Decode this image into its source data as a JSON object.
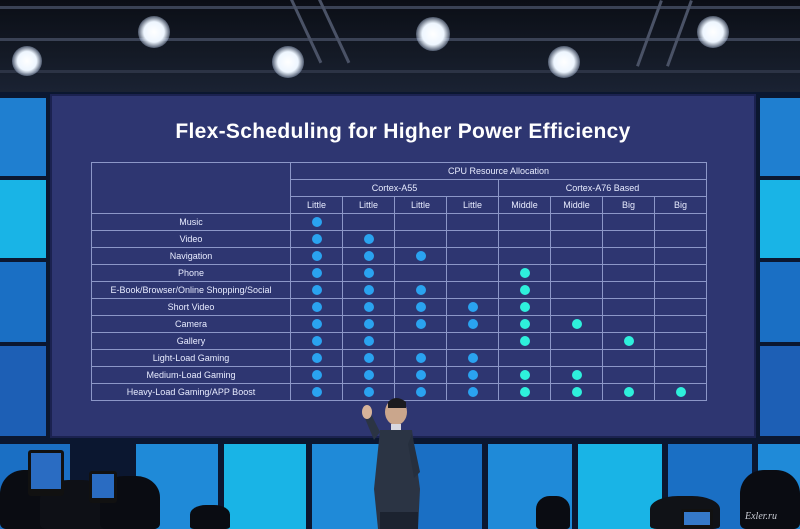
{
  "slide": {
    "title": "Flex-Scheduling for Higher Power Efficiency",
    "resource_header": "CPU Resource Allocation",
    "groups": [
      {
        "label": "Cortex-A55",
        "span": 4
      },
      {
        "label": "Cortex-A76 Based",
        "span": 4
      }
    ],
    "cores": [
      "Little",
      "Little",
      "Little",
      "Little",
      "Middle",
      "Middle",
      "Big",
      "Big"
    ],
    "rows": [
      {
        "label": "Music",
        "dots": [
          "blue",
          "",
          "",
          "",
          "",
          "",
          "",
          ""
        ]
      },
      {
        "label": "Video",
        "dots": [
          "blue",
          "blue",
          "",
          "",
          "",
          "",
          "",
          ""
        ]
      },
      {
        "label": "Navigation",
        "dots": [
          "blue",
          "blue",
          "blue",
          "",
          "",
          "",
          "",
          ""
        ]
      },
      {
        "label": "Phone",
        "dots": [
          "blue",
          "blue",
          "",
          "",
          "cyan",
          "",
          "",
          ""
        ]
      },
      {
        "label": "E-Book/Browser/Online Shopping/Social",
        "dots": [
          "blue",
          "blue",
          "blue",
          "",
          "cyan",
          "",
          "",
          ""
        ]
      },
      {
        "label": "Short Video",
        "dots": [
          "blue",
          "blue",
          "blue",
          "blue",
          "cyan",
          "",
          "",
          ""
        ]
      },
      {
        "label": "Camera",
        "dots": [
          "blue",
          "blue",
          "blue",
          "blue",
          "cyan",
          "cyan",
          "",
          ""
        ]
      },
      {
        "label": "Gallery",
        "dots": [
          "blue",
          "blue",
          "",
          "",
          "cyan",
          "",
          "cyan",
          ""
        ]
      },
      {
        "label": "Light-Load Gaming",
        "dots": [
          "blue",
          "blue",
          "blue",
          "blue",
          "",
          "",
          "",
          ""
        ]
      },
      {
        "label": "Medium-Load Gaming",
        "dots": [
          "blue",
          "blue",
          "blue",
          "blue",
          "cyan",
          "cyan",
          "",
          ""
        ]
      },
      {
        "label": "Heavy-Load Gaming/APP Boost",
        "dots": [
          "blue",
          "blue",
          "blue",
          "blue",
          "cyan",
          "cyan",
          "cyan",
          "cyan"
        ]
      }
    ]
  },
  "watermark": "Exler.ru",
  "colors": {
    "slide_bg": "#2e3671",
    "little_core_dot": "#2aa3f0",
    "big_core_dot": "#2ef0dc",
    "panel_cyan": "#19b4e6"
  }
}
